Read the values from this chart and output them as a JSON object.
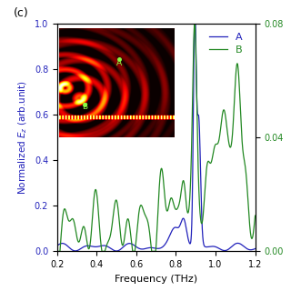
{
  "xlabel": "Frequency (THz)",
  "ylabel_left": "Normalized $E_z$ (arb.unit)",
  "xlim": [
    0.2,
    1.2
  ],
  "ylim_left": [
    0.0,
    1.0
  ],
  "ylim_right": [
    0.0,
    0.08
  ],
  "yticks_left": [
    0.0,
    0.2,
    0.4,
    0.6,
    0.8,
    1.0
  ],
  "yticks_right": [
    0.0,
    0.04,
    0.08
  ],
  "xticks": [
    0.2,
    0.4,
    0.6,
    0.8,
    1.0,
    1.2
  ],
  "color_A": "#2222bb",
  "color_B": "#228822",
  "legend_A": "A",
  "legend_B": "B",
  "panel_label": "(c)"
}
